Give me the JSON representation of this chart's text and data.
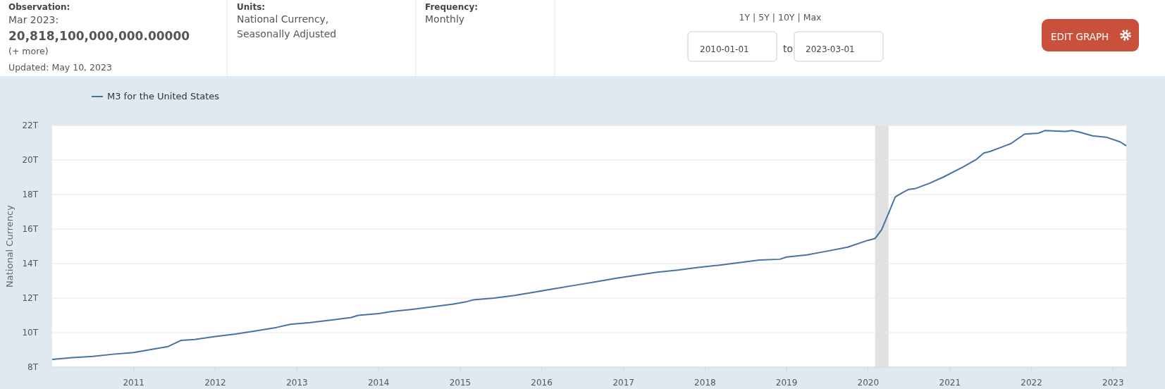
{
  "chart_data": {
    "type": "line",
    "ylabel": "National Currency",
    "legend": "top left",
    "grid": "y",
    "xlim": [
      "2010-01",
      "2023-03"
    ],
    "xticks": [
      "2011",
      "2012",
      "2013",
      "2014",
      "2015",
      "2016",
      "2017",
      "2018",
      "2019",
      "2020",
      "2021",
      "2022",
      "2023"
    ],
    "ylim": [
      8,
      22
    ],
    "yticks": [
      {
        "value": 8,
        "label": "8T"
      },
      {
        "value": 10,
        "label": "10T"
      },
      {
        "value": 12,
        "label": "12T"
      },
      {
        "value": 14,
        "label": "14T"
      },
      {
        "value": 16,
        "label": "16T"
      },
      {
        "value": 18,
        "label": "18T"
      },
      {
        "value": 20,
        "label": "20T"
      },
      {
        "value": 22,
        "label": "22T"
      }
    ],
    "bands": [
      {
        "axis": "x",
        "from": "2020-02",
        "to": "2020-04",
        "color": "#e1e1e1"
      }
    ],
    "annotations": [
      "Observation:",
      "Mar 2023:",
      "20,818,100,000,000.00000",
      "(+ more)",
      "Updated: May 10, 2023",
      "Units:",
      "National Currency,",
      "Seasonally Adjusted",
      "Frequency:",
      "Monthly",
      "1Y | 5Y | 10Y | Max",
      "2010-01-01",
      "to",
      "2023-03-01",
      "EDIT GRAPH"
    ],
    "x": [
      "2010-01",
      "2010-04",
      "2010-07",
      "2010-10",
      "2011-01",
      "2011-04",
      "2011-06",
      "2011-08",
      "2011-10",
      "2012-01",
      "2012-04",
      "2012-07",
      "2012-10",
      "2012-12",
      "2013-03",
      "2013-06",
      "2013-09",
      "2013-10",
      "2014-01",
      "2014-03",
      "2014-06",
      "2014-09",
      "2014-12",
      "2015-02",
      "2015-03",
      "2015-06",
      "2015-09",
      "2015-12",
      "2016-03",
      "2016-06",
      "2016-09",
      "2016-12",
      "2017-03",
      "2017-06",
      "2017-09",
      "2017-12",
      "2018-03",
      "2018-06",
      "2018-09",
      "2018-12",
      "2019-01",
      "2019-04",
      "2019-07",
      "2019-10",
      "2020-01",
      "2020-02",
      "2020-03",
      "2020-04",
      "2020-05",
      "2020-06",
      "2020-07",
      "2020-08",
      "2020-10",
      "2020-12",
      "2021-03",
      "2021-05",
      "2021-06",
      "2021-07",
      "2021-09",
      "2021-10",
      "2021-12",
      "2022-02",
      "2022-03",
      "2022-06",
      "2022-07",
      "2022-08",
      "2022-10",
      "2022-12",
      "2023-02",
      "2023-03"
    ],
    "series": [
      {
        "name": "M3 for the United States",
        "color": "#4572a7",
        "values": [
          8.45,
          8.55,
          8.62,
          8.75,
          8.85,
          9.05,
          9.18,
          9.55,
          9.6,
          9.78,
          9.92,
          10.1,
          10.3,
          10.48,
          10.58,
          10.72,
          10.88,
          11.0,
          11.1,
          11.22,
          11.35,
          11.5,
          11.65,
          11.8,
          11.9,
          12.0,
          12.15,
          12.35,
          12.55,
          12.75,
          12.95,
          13.15,
          13.33,
          13.5,
          13.62,
          13.78,
          13.9,
          14.05,
          14.2,
          14.25,
          14.38,
          14.5,
          14.72,
          14.95,
          15.35,
          15.45,
          15.95,
          16.9,
          17.85,
          18.1,
          18.3,
          18.35,
          18.65,
          19.0,
          19.6,
          20.05,
          20.4,
          20.5,
          20.8,
          20.95,
          21.5,
          21.55,
          21.7,
          21.65,
          21.7,
          21.62,
          21.4,
          21.32,
          21.05,
          20.82
        ]
      }
    ]
  }
}
